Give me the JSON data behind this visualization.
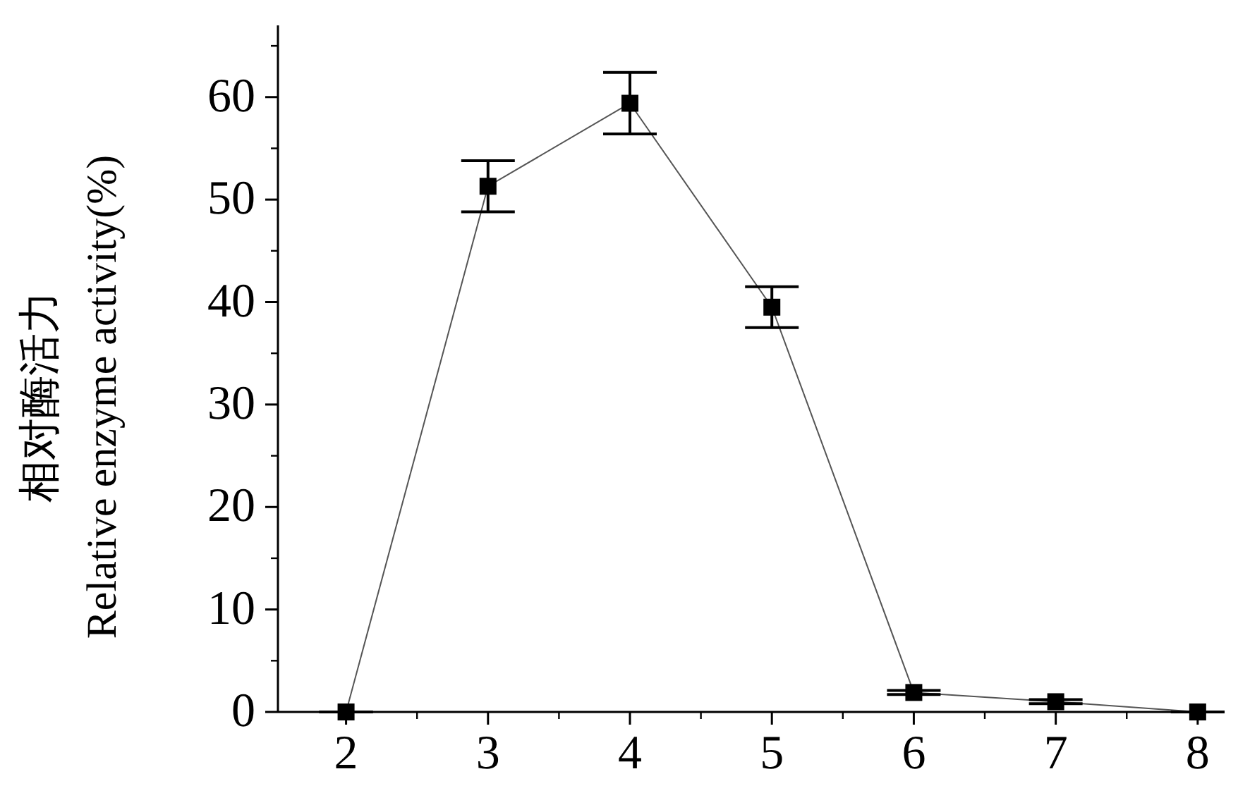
{
  "chart_data": {
    "type": "line",
    "ylabel": "相对酶活力\nRelative enzyme activity(%)",
    "x": [
      2,
      3,
      4,
      5,
      6,
      7,
      8
    ],
    "series": [
      {
        "color": "#000000",
        "values": [
          0,
          51.3,
          59.4,
          39.5,
          1.9,
          1.0,
          0
        ],
        "errors": [
          0,
          2.5,
          3,
          2,
          0.2,
          0.2,
          0
        ]
      }
    ],
    "xlim": [
      1.52,
      8.13
    ],
    "ylim": [
      0,
      67
    ],
    "xticks": [
      2,
      3,
      4,
      5,
      6,
      7,
      8
    ],
    "yticks": [
      0,
      10,
      20,
      30,
      40,
      50,
      60
    ],
    "marker": "square",
    "line_style": "solid"
  }
}
